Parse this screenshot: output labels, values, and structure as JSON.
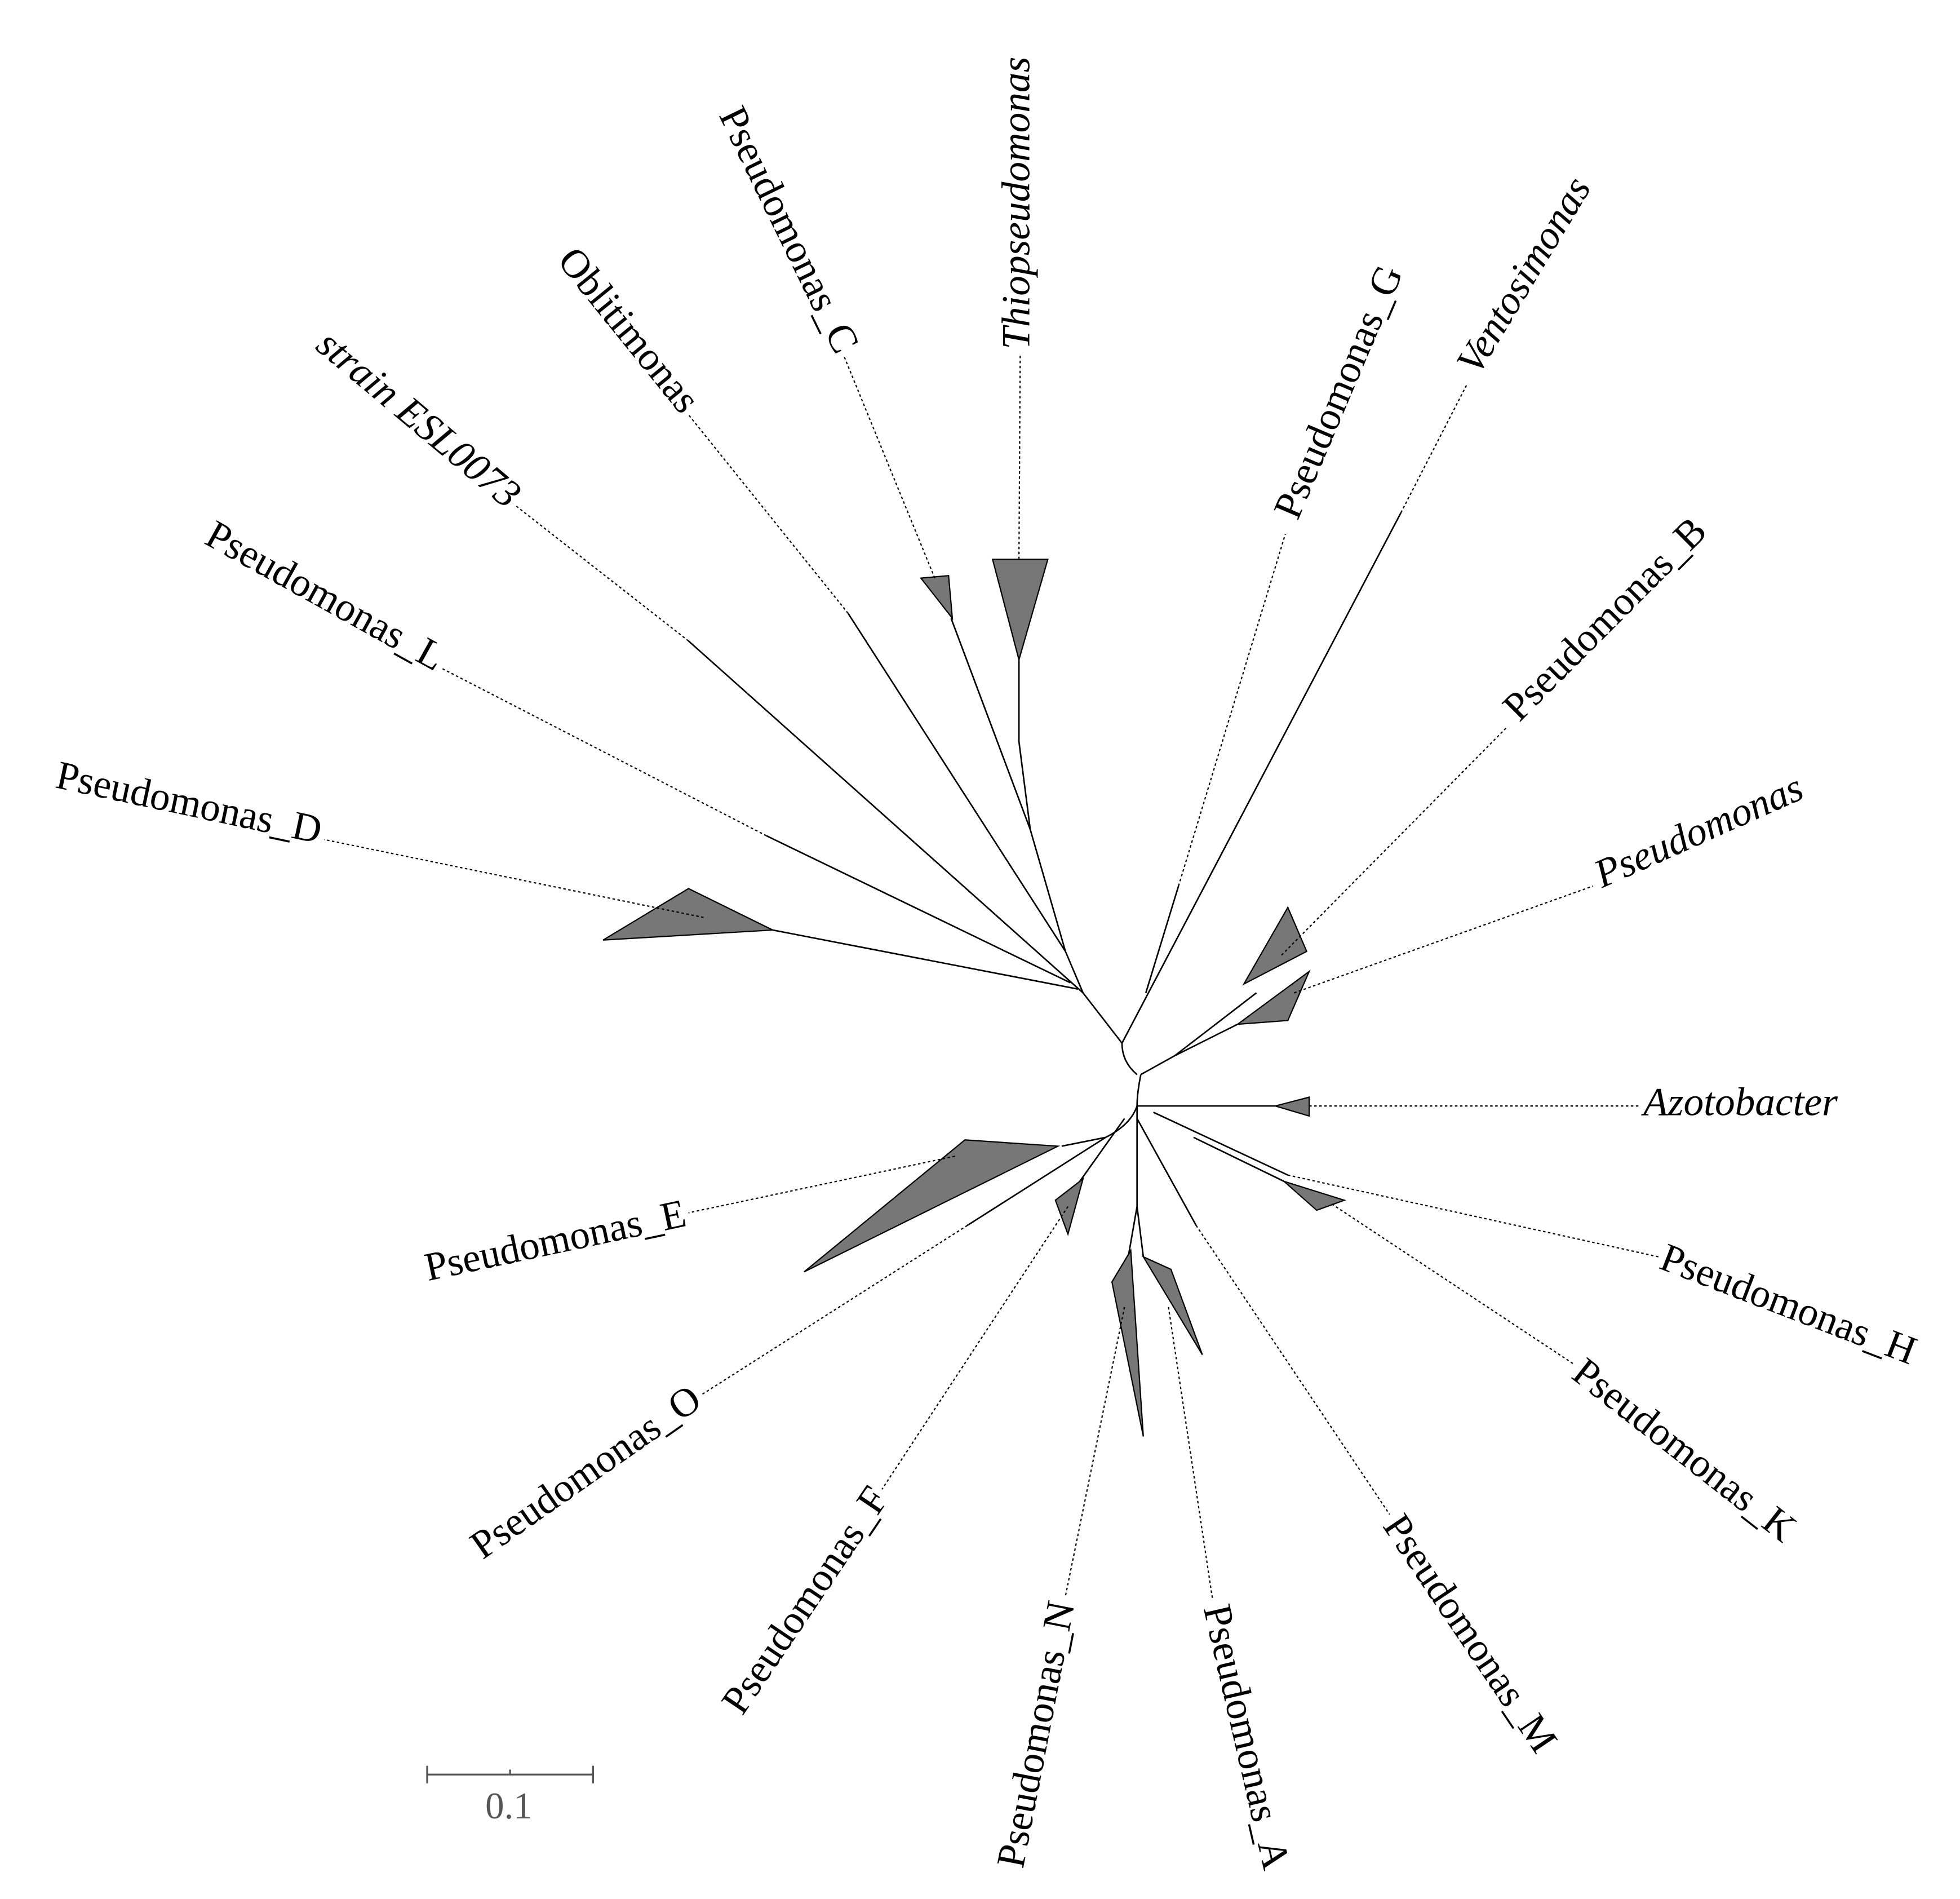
{
  "taxa": [
    "Thiopseudomonas",
    "Pseudomonas_C",
    "Oblitimonas",
    "strain ESL0073",
    "Pseudomonas_L",
    "Pseudomonas_D",
    "Pseudomonas_G",
    "Ventosimonas",
    "Pseudomonas_B",
    "Pseudomonas",
    "Azotobacter",
    "Pseudomonas_H",
    "Pseudomonas_K",
    "Pseudomonas_M",
    "Pseudomonas_A",
    "Pseudomonas_N",
    "Pseudomonas_F",
    "Pseudomonas_O",
    "Pseudomonas_E"
  ],
  "scale_bar": {
    "label": "0.1"
  }
}
